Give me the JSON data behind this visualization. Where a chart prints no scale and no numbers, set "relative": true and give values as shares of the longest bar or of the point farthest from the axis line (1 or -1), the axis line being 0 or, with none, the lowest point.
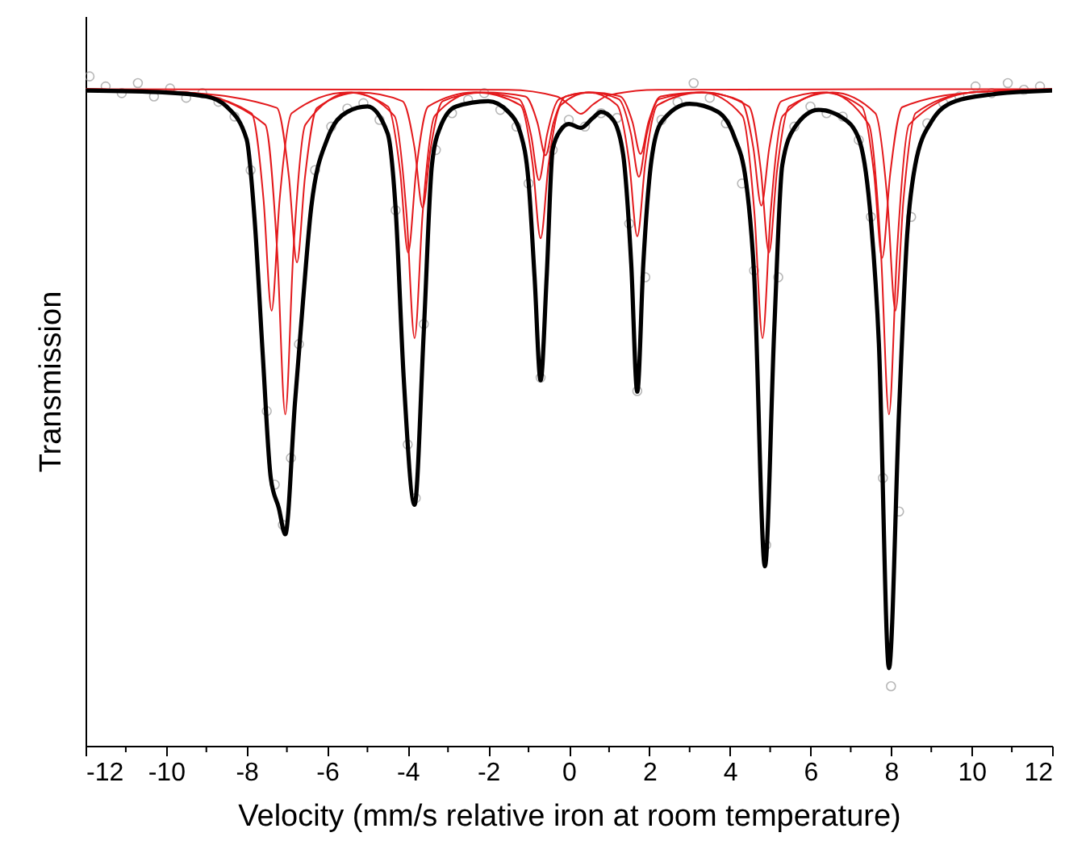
{
  "chart_data": {
    "type": "line",
    "relative": true,
    "xlabel": "Velocity (mm/s relative iron at room temperature)",
    "ylabel": "Transmission",
    "xlim": [
      -12,
      12
    ],
    "xticks": [
      -12,
      {
        "value": -11,
        "label": null
      },
      -10,
      {
        "value": -9,
        "label": null
      },
      -8,
      {
        "value": -7,
        "label": null
      },
      -6,
      {
        "value": -5,
        "label": null
      },
      -4,
      {
        "value": -3,
        "label": null
      },
      -2,
      {
        "value": -1,
        "label": null
      },
      0,
      {
        "value": 1,
        "label": null
      },
      2,
      {
        "value": 3,
        "label": null
      },
      4,
      {
        "value": 5,
        "label": null
      },
      6,
      {
        "value": 7,
        "label": null
      },
      8,
      {
        "value": 9,
        "label": null
      },
      10,
      {
        "value": 11,
        "label": null
      },
      12
    ],
    "grid": false,
    "tick_labels": "x",
    "series": [
      {
        "type": "scatter",
        "marker": "circle",
        "color": "#999999",
        "x": [
          -11.9,
          -11.5,
          -11.1,
          -10.7,
          -10.3,
          -9.9,
          -9.5,
          -9.1,
          -8.7,
          -8.3,
          -7.9,
          -7.5,
          -7.3,
          -7.1,
          -6.9,
          -6.7,
          -6.3,
          -5.9,
          -5.5,
          -5.1,
          -4.7,
          -4.3,
          -4.0,
          -3.8,
          -3.6,
          -3.3,
          -2.9,
          -2.5,
          -2.1,
          -1.7,
          -1.3,
          -1.0,
          -0.7,
          -0.4,
          0,
          0.4,
          0.8,
          1.2,
          1.5,
          1.7,
          1.9,
          2.3,
          2.7,
          3.1,
          3.5,
          3.9,
          4.3,
          4.6,
          4.9,
          5.2,
          5.6,
          6.0,
          6.4,
          6.8,
          7.2,
          7.5,
          7.8,
          8.0,
          8.2,
          8.5,
          8.9,
          9.3,
          9.7,
          10.1,
          10.5,
          10.9,
          11.3,
          11.7
        ],
        "values": [
          1.0,
          0.985,
          0.975,
          0.99,
          0.97,
          0.982,
          0.968,
          0.975,
          0.962,
          0.94,
          0.86,
          0.5,
          0.39,
          0.33,
          0.43,
          0.6,
          0.86,
          0.925,
          0.952,
          0.96,
          0.935,
          0.8,
          0.45,
          0.37,
          0.63,
          0.89,
          0.945,
          0.965,
          0.975,
          0.95,
          0.925,
          0.84,
          0.55,
          0.89,
          0.935,
          0.925,
          0.945,
          0.938,
          0.78,
          0.53,
          0.7,
          0.935,
          0.962,
          0.99,
          0.968,
          0.93,
          0.84,
          0.71,
          0.3,
          0.7,
          0.925,
          0.955,
          0.945,
          0.94,
          0.905,
          0.79,
          0.4,
          0.089,
          0.35,
          0.79,
          0.93,
          0.96,
          0.97,
          0.985,
          0.975,
          0.99,
          0.98,
          0.985
        ]
      },
      {
        "marker": "none",
        "line_style": "solid",
        "color": "#e3191c",
        "x": [
          -12,
          -9.5,
          -7.88,
          -7.58,
          -7.38,
          -7.18,
          -6.88,
          -5.5,
          -4.49,
          -4.19,
          -3.99,
          -3.79,
          -3.49,
          -2.35,
          -1.24,
          -0.94,
          -0.74,
          -0.54,
          -0.24,
          0.5,
          1.24,
          1.54,
          1.74,
          1.94,
          2.24,
          3.35,
          4.47,
          4.77,
          4.97,
          5.17,
          5.47,
          6.55,
          7.61,
          7.91,
          8.11,
          8.31,
          8.61,
          10,
          12
        ],
        "values": [
          0.981,
          0.976,
          0.945,
          0.816,
          0.65,
          0.816,
          0.945,
          0.976,
          0.955,
          0.859,
          0.737,
          0.859,
          0.955,
          0.976,
          0.966,
          0.913,
          0.845,
          0.913,
          0.966,
          0.976,
          0.966,
          0.915,
          0.85,
          0.915,
          0.966,
          0.976,
          0.955,
          0.859,
          0.737,
          0.859,
          0.955,
          0.976,
          0.945,
          0.816,
          0.65,
          0.816,
          0.945,
          0.976,
          0.981
        ]
      },
      {
        "marker": "none",
        "line_style": "solid",
        "color": "#e3191c",
        "x": [
          -12,
          -9.5,
          -7.54,
          -7.24,
          -7.04,
          -6.84,
          -6.54,
          -5.4,
          -4.33,
          -4.03,
          -3.83,
          -3.63,
          -3.33,
          -2.3,
          -1.2,
          -0.9,
          -0.7,
          -0.5,
          -0.2,
          0.5,
          1.2,
          1.5,
          1.7,
          1.9,
          2.2,
          3.3,
          4.31,
          4.61,
          4.81,
          5.01,
          5.31,
          6.4,
          7.45,
          7.75,
          7.95,
          8.15,
          8.45,
          10,
          12
        ],
        "values": [
          0.981,
          0.976,
          0.928,
          0.738,
          0.495,
          0.738,
          0.928,
          0.976,
          0.941,
          0.795,
          0.609,
          0.795,
          0.941,
          0.976,
          0.957,
          0.87,
          0.758,
          0.87,
          0.957,
          0.976,
          0.957,
          0.871,
          0.761,
          0.871,
          0.957,
          0.976,
          0.941,
          0.795,
          0.609,
          0.795,
          0.941,
          0.976,
          0.928,
          0.738,
          0.495,
          0.738,
          0.928,
          0.976,
          0.981
        ]
      },
      {
        "marker": "none",
        "line_style": "solid",
        "color": "#e3191c",
        "x": [
          -12,
          -9.5,
          -7.25,
          -6.95,
          -6.75,
          -6.55,
          -6.25,
          -5.2,
          -4.13,
          -3.83,
          -3.63,
          -3.43,
          -3.13,
          -2.1,
          -1.08,
          -0.78,
          -0.58,
          -0.38,
          -0.08,
          0.6,
          1.28,
          1.58,
          1.78,
          1.98,
          2.28,
          3.3,
          4.28,
          4.58,
          4.78,
          4.98,
          5.28,
          6.3,
          7.28,
          7.58,
          7.78,
          7.98,
          8.28,
          10,
          12
        ],
        "values": [
          0.981,
          0.976,
          0.953,
          0.85,
          0.722,
          0.85,
          0.953,
          0.976,
          0.963,
          0.893,
          0.804,
          0.893,
          0.963,
          0.976,
          0.97,
          0.931,
          0.882,
          0.931,
          0.97,
          0.976,
          0.97,
          0.932,
          0.884,
          0.932,
          0.97,
          0.976,
          0.963,
          0.894,
          0.807,
          0.894,
          0.963,
          0.976,
          0.954,
          0.854,
          0.729,
          0.854,
          0.954,
          0.976,
          0.981
        ]
      },
      {
        "marker": "none",
        "line_style": "solid",
        "color": "#e3191c",
        "x": [
          -12,
          -1.5,
          -0.3,
          0,
          0.3,
          0.6,
          1.0,
          2.2,
          12
        ],
        "values": [
          0.981,
          0.98,
          0.97,
          0.958,
          0.944,
          0.958,
          0.972,
          0.98,
          0.981
        ]
      },
      {
        "marker": "none",
        "line_style": "solid",
        "color": "#000000",
        "x": [
          -12,
          -10,
          -9,
          -8.5,
          -8,
          -7.8,
          -7.6,
          -7.4,
          -7.2,
          -7.04,
          -6.8,
          -6.6,
          -6.4,
          -6.0,
          -5.5,
          -5.0,
          -4.5,
          -4.3,
          -4.1,
          -3.83,
          -3.6,
          -3.4,
          -3.2,
          -2.8,
          -2.0,
          -1.5,
          -1.2,
          -1.0,
          -0.85,
          -0.7,
          -0.55,
          -0.4,
          -0.2,
          0,
          0.3,
          0.6,
          0.8,
          1.1,
          1.35,
          1.55,
          1.7,
          1.85,
          2.05,
          2.3,
          3.0,
          3.7,
          4.1,
          4.4,
          4.6,
          4.87,
          5.1,
          5.3,
          5.6,
          6.2,
          6.8,
          7.2,
          7.5,
          7.7,
          7.95,
          8.2,
          8.4,
          8.6,
          9.0,
          9.6,
          10.5,
          12
        ],
        "values": [
          0.979,
          0.976,
          0.97,
          0.955,
          0.906,
          0.785,
          0.585,
          0.4,
          0.355,
          0.316,
          0.512,
          0.664,
          0.802,
          0.906,
          0.947,
          0.955,
          0.915,
          0.802,
          0.55,
          0.36,
          0.62,
          0.867,
          0.923,
          0.955,
          0.963,
          0.947,
          0.915,
          0.843,
          0.7,
          0.546,
          0.7,
          0.891,
          0.92,
          0.929,
          0.923,
          0.938,
          0.947,
          0.935,
          0.883,
          0.72,
          0.529,
          0.72,
          0.874,
          0.932,
          0.959,
          0.947,
          0.911,
          0.843,
          0.705,
          0.268,
          0.62,
          0.867,
          0.923,
          0.95,
          0.938,
          0.907,
          0.786,
          0.6,
          0.116,
          0.5,
          0.762,
          0.867,
          0.932,
          0.963,
          0.973,
          0.979
        ]
      }
    ]
  }
}
